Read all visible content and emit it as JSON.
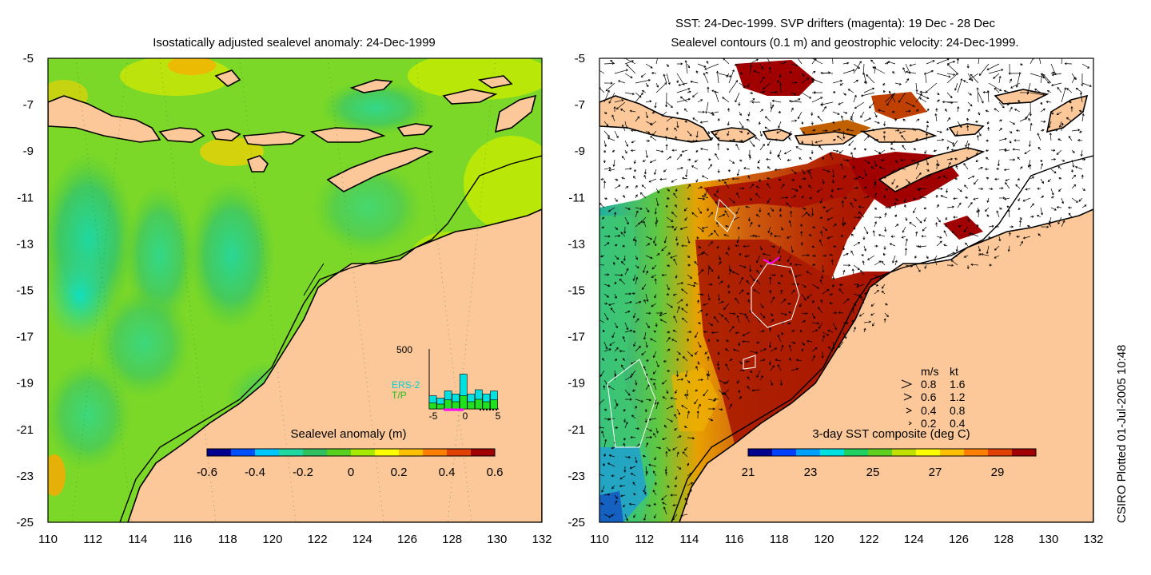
{
  "left_panel": {
    "title": "Isostatically adjusted sealevel anomaly: 24-Dec-1999",
    "colorbar": {
      "label": "Sealevel anomaly (m)",
      "ticks": [
        "-0.6",
        "-0.4",
        "-0.2",
        "0",
        "0.2",
        "0.4",
        "0.6"
      ],
      "colors": [
        "#00008f",
        "#0050ff",
        "#00c8ff",
        "#20d8a0",
        "#30c060",
        "#58d020",
        "#a8e800",
        "#ffff00",
        "#ffc000",
        "#ff8000",
        "#e04000",
        "#a00000"
      ]
    },
    "inset": {
      "ymax_label": "500",
      "legend": [
        "ERS-2",
        "T/P"
      ],
      "x_ticks": [
        "-5",
        "0",
        "5"
      ],
      "ers2_color": "#00e0e0",
      "tp_color": "#20e020",
      "marker_color": "#ff00ff",
      "bars_ers2": [
        0.22,
        0.18,
        0.3,
        0.25,
        0.58,
        0.25,
        0.32,
        0.25,
        0.3
      ],
      "bars_tp": [
        0.1,
        0.08,
        0.15,
        0.12,
        0.22,
        0.12,
        0.16,
        0.12,
        0.15
      ]
    }
  },
  "right_panel": {
    "title_line1": "SST: 24-Dec-1999. SVP drifters (magenta): 19 Dec - 28 Dec",
    "title_line2": "Sealevel contours (0.1 m) and geostrophic velocity: 24-Dec-1999.",
    "colorbar": {
      "label": "3-day SST composite (deg C)",
      "ticks": [
        "21",
        "23",
        "25",
        "27",
        "29"
      ],
      "colors": [
        "#00008f",
        "#0040ff",
        "#00a0ff",
        "#00e0e0",
        "#20d060",
        "#60d020",
        "#c0e000",
        "#ffff00",
        "#ffc000",
        "#ff8000",
        "#e04000",
        "#a00000"
      ]
    },
    "velocity_legend": {
      "header_ms": "m/s",
      "header_kt": "kt",
      "rows": [
        {
          "ms": "0.8",
          "kt": "1.6"
        },
        {
          "ms": "0.6",
          "kt": "1.2"
        },
        {
          "ms": "0.4",
          "kt": "0.8"
        },
        {
          "ms": "0.2",
          "kt": "0.4"
        }
      ]
    }
  },
  "axes": {
    "lon_ticks": [
      "110",
      "112",
      "114",
      "116",
      "118",
      "120",
      "122",
      "124",
      "126",
      "128",
      "130",
      "132"
    ],
    "lat_ticks": [
      "-5",
      "-7",
      "-9",
      "-11",
      "-13",
      "-15",
      "-17",
      "-19",
      "-21",
      "-23",
      "-25"
    ],
    "lon_range": [
      110,
      132
    ],
    "lat_range": [
      -25,
      -5
    ]
  },
  "land_color": "#fcc899",
  "credit": "CSIRO Plotted 01-Jul-2005 10:48"
}
